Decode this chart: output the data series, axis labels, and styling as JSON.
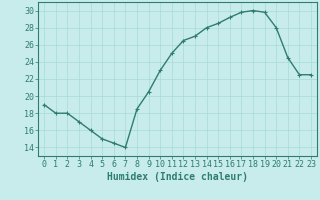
{
  "x": [
    0,
    1,
    2,
    3,
    4,
    5,
    6,
    7,
    8,
    9,
    10,
    11,
    12,
    13,
    14,
    15,
    16,
    17,
    18,
    19,
    20,
    21,
    22,
    23
  ],
  "y": [
    19,
    18,
    18,
    17,
    16,
    15,
    14.5,
    14,
    18.5,
    20.5,
    23,
    25,
    26.5,
    27,
    28,
    28.5,
    29.2,
    29.8,
    30,
    29.8,
    28,
    24.5,
    22.5,
    22.5
  ],
  "line_color": "#2e7d6e",
  "marker_color": "#2e7d6e",
  "bg_color": "#c8ecec",
  "grid_color": "#a8d8d8",
  "xlabel": "Humidex (Indice chaleur)",
  "xlim": [
    -0.5,
    23.5
  ],
  "ylim": [
    13,
    31
  ],
  "yticks": [
    14,
    16,
    18,
    20,
    22,
    24,
    26,
    28,
    30
  ],
  "xticks": [
    0,
    1,
    2,
    3,
    4,
    5,
    6,
    7,
    8,
    9,
    10,
    11,
    12,
    13,
    14,
    15,
    16,
    17,
    18,
    19,
    20,
    21,
    22,
    23
  ],
  "tick_color": "#2e7d6e",
  "font_size_label": 7,
  "font_size_tick": 6,
  "line_width": 1.0,
  "marker_size": 2.5
}
